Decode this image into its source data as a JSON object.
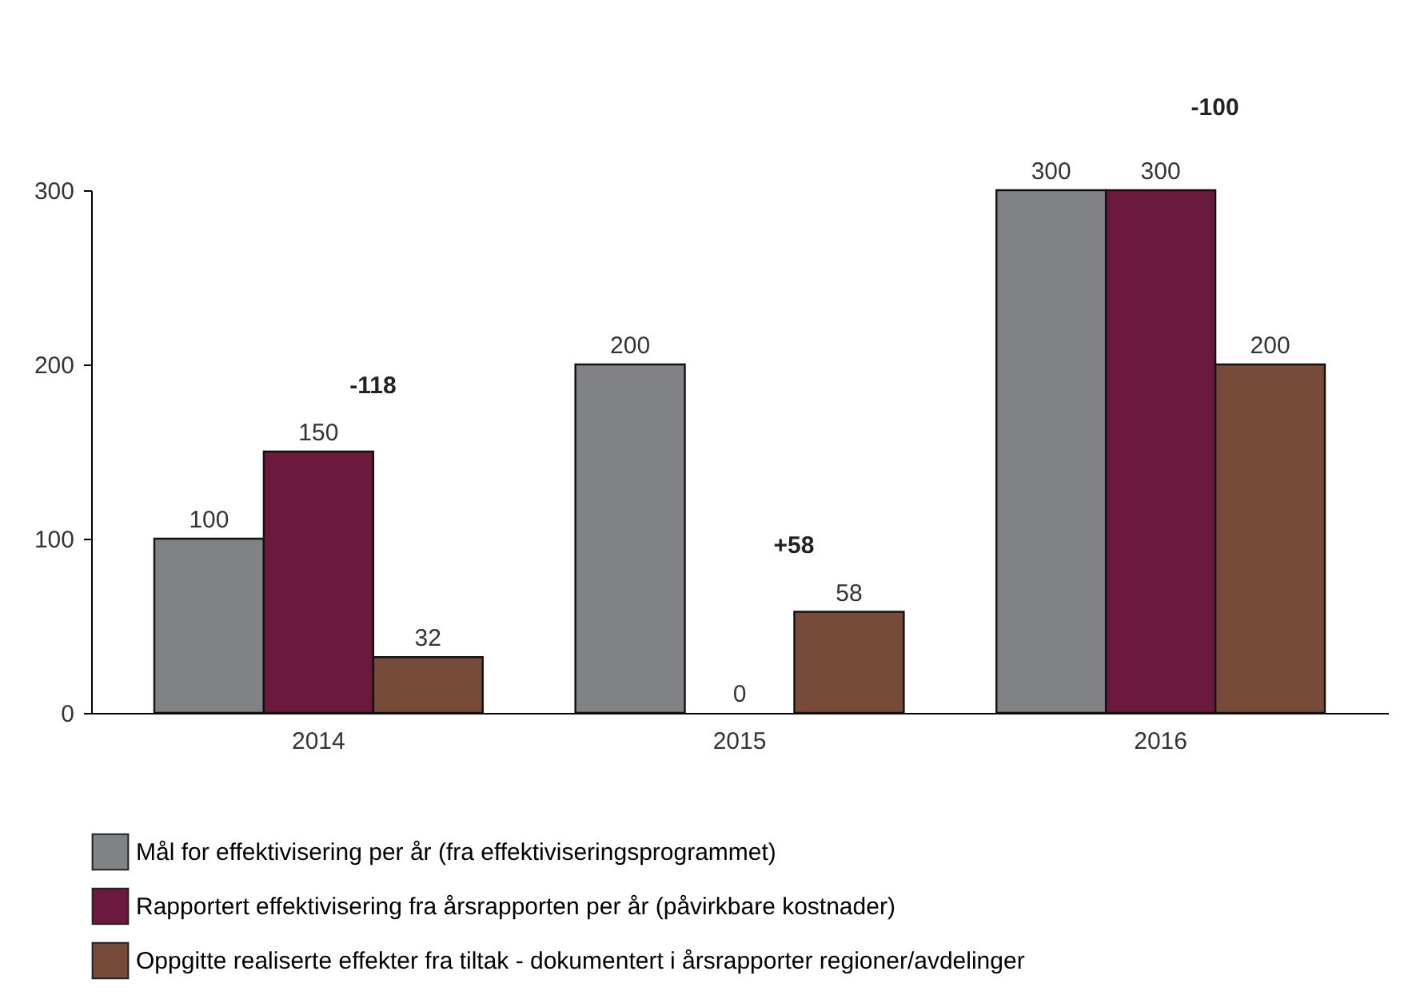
{
  "chart_data": {
    "type": "bar",
    "categories": [
      "2014",
      "2015",
      "2016"
    ],
    "series": [
      {
        "name": "Mål for effektivisering per år (fra effektiviseringsprogrammet)",
        "color": "#808285",
        "values": [
          100,
          200,
          300
        ]
      },
      {
        "name": "Rapportert effektivisering fra årsrapporten per år (påvirkbare kostnader)",
        "color": "#6b1a3e",
        "values": [
          150,
          0,
          300
        ]
      },
      {
        "name": "Oppgitte realiserte effekter fra tiltak - dokumentert i årsrapporter regioner/avdelinger",
        "color": "#774b39",
        "values": [
          32,
          58,
          200
        ]
      }
    ],
    "ylim": [
      0,
      300
    ],
    "yticks": [
      0,
      100,
      200,
      300
    ],
    "grid": false,
    "legend": "bottom",
    "data_labels": true,
    "annotations": [
      "-118",
      "+58",
      "-100"
    ]
  }
}
